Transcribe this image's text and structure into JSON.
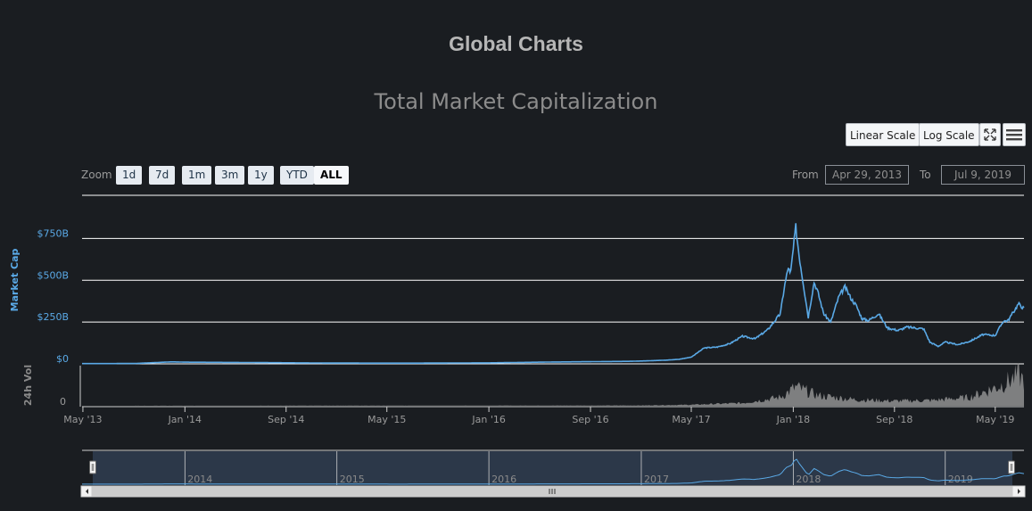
{
  "page": {
    "title": "Global Charts"
  },
  "toolbar": {
    "linear_label": "Linear Scale",
    "log_label": "Log Scale",
    "fullscreen_icon": "fullscreen-icon",
    "menu_icon": "menu-icon"
  },
  "range_selector": {
    "zoom_label": "Zoom",
    "buttons": [
      "1d",
      "7d",
      "1m",
      "3m",
      "1y",
      "YTD",
      "ALL"
    ],
    "selected": "ALL",
    "from_label": "From",
    "from_value": "Apr 29, 2013",
    "to_label": "To",
    "to_value": "Jul 9, 2019"
  },
  "colors": {
    "line": "#5aa9e6",
    "volume": "#909090",
    "grid": "#ffffff",
    "background": "#1a1d21",
    "axis_label": "#5aa9e6"
  },
  "chart_data": {
    "type": "line",
    "title": "Total Market Capitalization",
    "ylabel": "Market Cap",
    "y_ticks": [
      "$0",
      "$250B",
      "$500B",
      "$750B"
    ],
    "ylim": [
      0,
      800
    ],
    "y_unit": "billions USD",
    "x_ticks": [
      "May '13",
      "Jan '14",
      "Sep '14",
      "May '15",
      "Jan '16",
      "Sep '16",
      "May '17",
      "Jan '18",
      "Sep '18",
      "May '19"
    ],
    "x_range": [
      "2013-04-29",
      "2019-07-09"
    ],
    "series": [
      {
        "name": "Market Cap",
        "points": [
          [
            "2013-04-29",
            1.6
          ],
          [
            "2013-09-01",
            2
          ],
          [
            "2013-12-01",
            12
          ],
          [
            "2014-01-01",
            10
          ],
          [
            "2014-06-01",
            8
          ],
          [
            "2014-12-01",
            5
          ],
          [
            "2015-06-01",
            4
          ],
          [
            "2016-01-01",
            6
          ],
          [
            "2016-06-01",
            11
          ],
          [
            "2016-12-01",
            15
          ],
          [
            "2017-01-15",
            18
          ],
          [
            "2017-03-01",
            22
          ],
          [
            "2017-04-01",
            27
          ],
          [
            "2017-05-01",
            40
          ],
          [
            "2017-06-01",
            95
          ],
          [
            "2017-07-01",
            100
          ],
          [
            "2017-08-01",
            120
          ],
          [
            "2017-09-01",
            165
          ],
          [
            "2017-10-01",
            150
          ],
          [
            "2017-11-01",
            205
          ],
          [
            "2017-12-01",
            300
          ],
          [
            "2017-12-10",
            450
          ],
          [
            "2017-12-20",
            580
          ],
          [
            "2017-12-25",
            530
          ],
          [
            "2018-01-07",
            820
          ],
          [
            "2018-01-15",
            650
          ],
          [
            "2018-02-06",
            280
          ],
          [
            "2018-02-20",
            490
          ],
          [
            "2018-03-01",
            430
          ],
          [
            "2018-03-15",
            300
          ],
          [
            "2018-04-01",
            250
          ],
          [
            "2018-04-20",
            400
          ],
          [
            "2018-05-05",
            460
          ],
          [
            "2018-05-20",
            390
          ],
          [
            "2018-06-01",
            350
          ],
          [
            "2018-06-15",
            270
          ],
          [
            "2018-07-01",
            260
          ],
          [
            "2018-07-25",
            300
          ],
          [
            "2018-08-15",
            215
          ],
          [
            "2018-09-10",
            200
          ],
          [
            "2018-10-01",
            220
          ],
          [
            "2018-11-10",
            210
          ],
          [
            "2018-11-25",
            130
          ],
          [
            "2018-12-15",
            105
          ],
          [
            "2019-01-01",
            130
          ],
          [
            "2019-02-01",
            115
          ],
          [
            "2019-03-01",
            135
          ],
          [
            "2019-04-01",
            175
          ],
          [
            "2019-05-01",
            170
          ],
          [
            "2019-05-20",
            255
          ],
          [
            "2019-06-01",
            260
          ],
          [
            "2019-06-26",
            360
          ],
          [
            "2019-07-09",
            330
          ]
        ]
      },
      {
        "name": "24h Vol",
        "points": [
          [
            "2013-04-29",
            0
          ],
          [
            "2017-01-01",
            1
          ],
          [
            "2017-05-01",
            3
          ],
          [
            "2017-09-01",
            8
          ],
          [
            "2017-12-01",
            25
          ],
          [
            "2018-01-07",
            55
          ],
          [
            "2018-03-01",
            30
          ],
          [
            "2018-06-01",
            18
          ],
          [
            "2018-09-01",
            14
          ],
          [
            "2018-12-01",
            16
          ],
          [
            "2019-03-01",
            25
          ],
          [
            "2019-05-15",
            60
          ],
          [
            "2019-06-26",
            90
          ],
          [
            "2019-07-09",
            75
          ]
        ]
      }
    ],
    "volume_label": "24h Vol",
    "volume_ticks": [
      "0"
    ],
    "navigator_years": [
      "2014",
      "2015",
      "2016",
      "2017",
      "2018",
      "2019"
    ],
    "grid": true
  }
}
